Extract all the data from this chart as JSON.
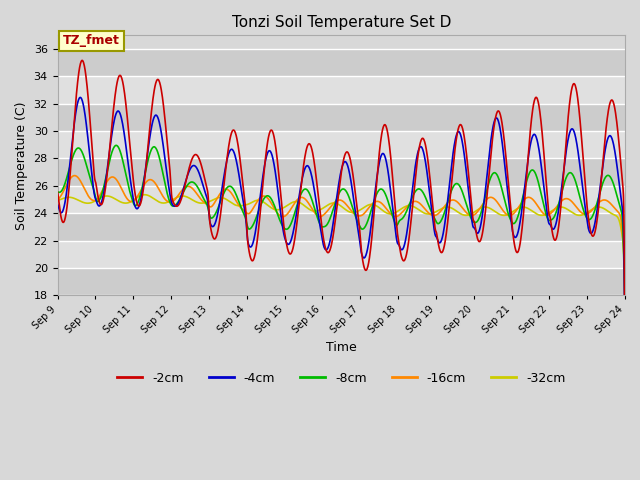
{
  "title": "Tonzi Soil Temperature Set D",
  "xlabel": "Time",
  "ylabel": "Soil Temperature (C)",
  "ylim": [
    18,
    37
  ],
  "yticks": [
    18,
    20,
    22,
    24,
    26,
    28,
    30,
    32,
    34,
    36
  ],
  "legend_labels": [
    "-2cm",
    "-4cm",
    "-8cm",
    "-16cm",
    "-32cm"
  ],
  "legend_colors": [
    "#cc0000",
    "#0000cc",
    "#00bb00",
    "#ff8800",
    "#cccc00"
  ],
  "label_box_text": "TZ_fmet",
  "label_box_facecolor": "#ffffcc",
  "label_box_edgecolor": "#999900",
  "label_text_color": "#aa0000",
  "fig_facecolor": "#d8d8d8",
  "plot_bg_color": "#d8d8d8",
  "band_colors": [
    "#cccccc",
    "#e0e0e0"
  ],
  "xtick_labels": [
    "Sep 9",
    "Sep 10",
    "Sep 11",
    "Sep 12",
    "Sep 13",
    "Sep 14",
    "Sep 15",
    "Sep 16",
    "Sep 17",
    "Sep 18",
    "Sep 19",
    "Sep 20",
    "Sep 21",
    "Sep 22",
    "Sep 23",
    "Sep 24"
  ],
  "n_days": 15,
  "pts_per_day": 96,
  "peaks_2cm": [
    35.2,
    34.1,
    33.8,
    28.3,
    30.1,
    30.1,
    29.1,
    28.5,
    30.5,
    29.5,
    30.5,
    31.5,
    32.5,
    33.5,
    32.3
  ],
  "troughs_2cm": [
    23.3,
    24.6,
    24.5,
    24.5,
    22.1,
    20.5,
    21.0,
    21.1,
    19.8,
    20.5,
    21.1,
    21.9,
    21.1,
    22.0,
    22.3
  ],
  "peaks_4cm": [
    32.5,
    31.5,
    31.2,
    27.5,
    28.7,
    28.6,
    27.5,
    27.8,
    28.4,
    28.9,
    30.0,
    31.0,
    29.8,
    30.2,
    29.7
  ],
  "troughs_4cm": [
    24.0,
    24.5,
    24.3,
    24.5,
    23.0,
    21.5,
    21.7,
    21.3,
    20.7,
    21.3,
    21.8,
    22.5,
    22.2,
    22.8,
    22.5
  ],
  "peaks_8cm": [
    28.8,
    29.0,
    28.9,
    26.3,
    26.0,
    25.3,
    25.8,
    25.8,
    25.8,
    25.8,
    26.2,
    27.0,
    27.2,
    27.0,
    26.8
  ],
  "troughs_8cm": [
    25.5,
    24.8,
    24.5,
    24.5,
    23.6,
    22.8,
    22.8,
    23.0,
    22.8,
    23.5,
    23.2,
    23.3,
    23.2,
    23.5,
    23.5
  ],
  "peaks_16cm": [
    26.8,
    26.7,
    26.5,
    26.0,
    25.8,
    25.3,
    25.2,
    25.0,
    24.9,
    24.9,
    25.0,
    25.2,
    25.2,
    25.1,
    25.0
  ],
  "troughs_16cm": [
    24.9,
    24.8,
    24.8,
    24.7,
    24.2,
    23.7,
    23.7,
    23.8,
    23.7,
    23.8,
    23.8,
    23.8,
    23.8,
    23.9,
    23.9
  ],
  "peaks_32cm": [
    25.2,
    25.3,
    25.4,
    25.3,
    25.2,
    25.0,
    24.9,
    24.8,
    24.7,
    24.6,
    24.5,
    24.5,
    24.5,
    24.5,
    24.5
  ],
  "troughs_32cm": [
    24.7,
    24.7,
    24.7,
    24.7,
    24.5,
    24.2,
    24.1,
    24.0,
    23.9,
    23.9,
    23.8,
    23.8,
    23.8,
    23.8,
    23.8
  ],
  "peak_phase": 0.65,
  "trough_phase": 0.15
}
